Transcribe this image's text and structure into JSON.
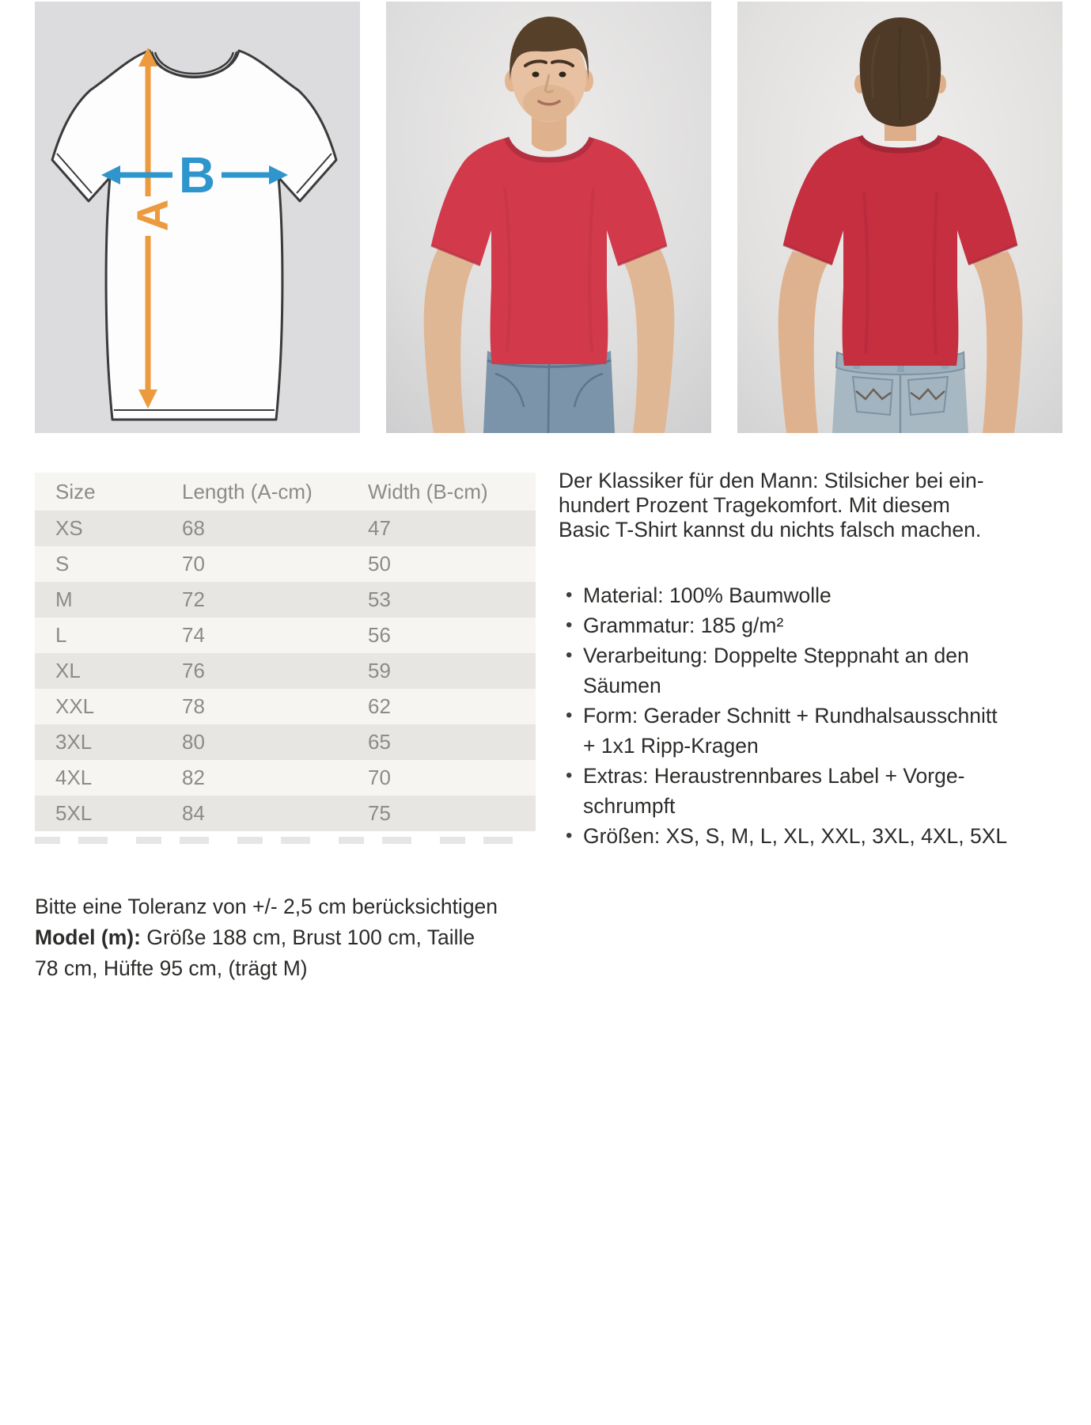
{
  "diagram": {
    "label_a": "A",
    "label_b": "B"
  },
  "size_table": {
    "columns": [
      "Size",
      "Length (A-cm)",
      "Width (B-cm)"
    ],
    "rows": [
      [
        "XS",
        "68",
        "47"
      ],
      [
        "S",
        "70",
        "50"
      ],
      [
        "M",
        "72",
        "53"
      ],
      [
        "L",
        "74",
        "56"
      ],
      [
        "XL",
        "76",
        "59"
      ],
      [
        "XXL",
        "78",
        "62"
      ],
      [
        "3XL",
        "80",
        "65"
      ],
      [
        "4XL",
        "82",
        "70"
      ],
      [
        "5XL",
        "84",
        "75"
      ]
    ]
  },
  "description": {
    "intro": "Der Klassiker für den Mann: Stilsicher bei ein-\nhundert Prozent Tragekomfort. Mit diesem\nBasic T-Shirt kannst du nichts falsch machen.",
    "bullets": [
      "Material: 100% Baumwolle",
      "Grammatur: 185 g/m²",
      "Verarbeitung: Doppelte Steppnaht an den\nSäumen",
      "Form: Gerader Schnitt + Rundhalsausschnitt\n+ 1x1 Ripp-Kragen",
      "Extras: Heraustrennbares Label + Vorge-\nschrumpft",
      "Größen: XS, S, M, L, XL, XXL, 3XL, 4XL, 5XL"
    ]
  },
  "notes": {
    "tolerance": "Bitte eine Toleranz von +/- 2,5 cm berücksichtigen",
    "model_label": "Model (m):",
    "model_info": "Größe 188 cm, Brust 100 cm, Taille\n78 cm, Hüfte 95 cm, (trägt M)"
  },
  "colors": {
    "arrow_orange": "#EC9A3D",
    "arrow_blue": "#2E96CC",
    "shirt_red_front": "#D23A4B",
    "shirt_red_back": "#C52F40"
  }
}
